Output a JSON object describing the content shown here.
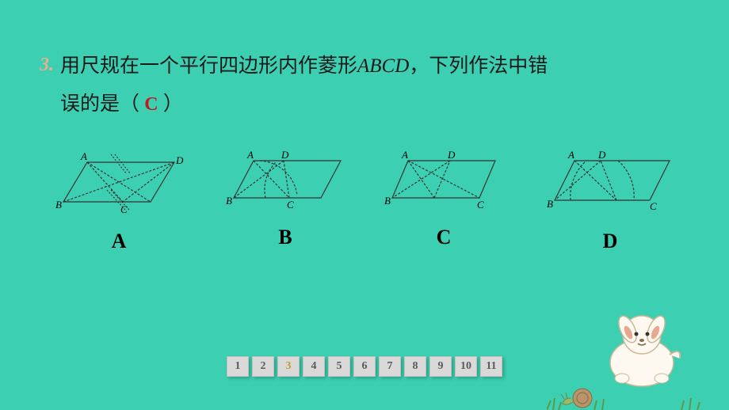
{
  "question": {
    "number": "3.",
    "text_line1_pre": "用尺规在一个平行四边形内作菱形",
    "text_line1_italic": "ABCD",
    "text_line1_post": "，下列作法中错",
    "text_line2_pre": "误的是（ ",
    "answer": "C",
    "text_line2_post": " ）"
  },
  "diagrams": {
    "labels": {
      "A": "A",
      "B": "B",
      "C": "C",
      "D": "D"
    },
    "vertex": {
      "A": "A",
      "B": "B",
      "C": "C",
      "D": "D"
    }
  },
  "pager": {
    "pages": [
      "1",
      "2",
      "3",
      "4",
      "5",
      "6",
      "7",
      "8",
      "9",
      "10",
      "11"
    ],
    "active": "3"
  },
  "colors": {
    "bg": "#3dcfb1",
    "stroke": "#333333",
    "dash": "#555555"
  }
}
